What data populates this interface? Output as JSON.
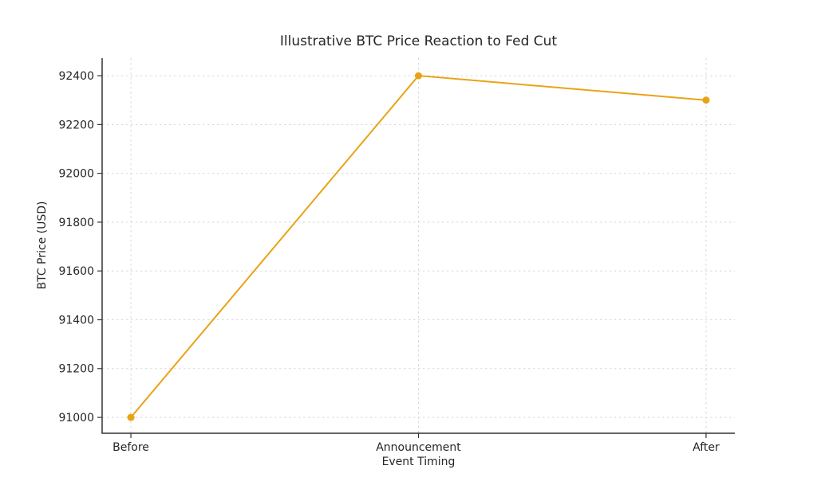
{
  "chart_data": {
    "type": "line",
    "title": "Illustrative BTC Price Reaction to Fed Cut",
    "xlabel": "Event Timing",
    "ylabel": "BTC Price (USD)",
    "categories": [
      "Before",
      "Announcement",
      "After"
    ],
    "values": [
      91000,
      92400,
      92300
    ],
    "yticks": [
      91000,
      91200,
      91400,
      91600,
      91800,
      92000,
      92200,
      92400
    ],
    "ylim": [
      90935,
      92472
    ],
    "x_pad_fraction": 0.1,
    "grid": true,
    "legend": "none",
    "line_color": "#E9A317",
    "marker": "circle",
    "grid_color": "#d8d8d8",
    "axis_color": "#333333",
    "text_color": "#262626"
  }
}
